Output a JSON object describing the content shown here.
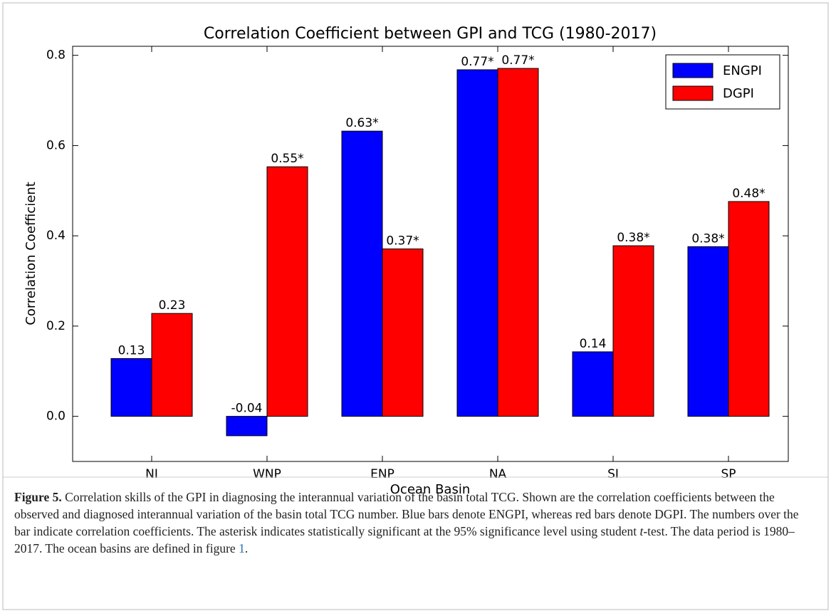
{
  "chart_data": {
    "type": "bar",
    "title": "Correlation Coefficient between GPI and TCG (1980-2017)",
    "x_label": "Ocean Basin",
    "y_label": "Correlation Coefficient",
    "categories": [
      "NI",
      "WNP",
      "ENP",
      "NA",
      "SI",
      "SP"
    ],
    "series": [
      {
        "name": "ENGPI",
        "color": "#0000ff",
        "values": [
          0.128,
          -0.043,
          0.632,
          0.768,
          0.143,
          0.376
        ],
        "value_labels": [
          "0.13",
          "-0.04",
          "0.63*",
          "0.77*",
          "0.14",
          "0.38*"
        ]
      },
      {
        "name": "DGPI",
        "color": "#ff0000",
        "values": [
          0.228,
          0.553,
          0.371,
          0.771,
          0.378,
          0.476
        ],
        "value_labels": [
          "0.23",
          "0.55*",
          "0.37*",
          "0.77*",
          "0.38*",
          "0.48*"
        ]
      }
    ],
    "ylim": [
      -0.1,
      0.82
    ],
    "yticks": [
      {
        "value": 0,
        "label": "0.0"
      },
      0.2,
      0.4,
      0.6,
      0.8
    ],
    "legend": "upper right"
  },
  "caption": {
    "label": "Figure 5.",
    "text_1": "Correlation skills of the GPI in diagnosing the interannual variation of the basin total TCG. Shown are the correlation coefficients between the observed and diagnosed interannual variation of the basin total TCG number. Blue bars denote ENGPI, whereas red bars denote DGPI. The numbers over the bar indicate correlation coefficients. The asterisk indicates statistically significant at the 95% significance level using student ",
    "italic": "t",
    "text_2": "-test. The data period is 1980–2017. The ocean basins are defined in figure ",
    "link": "1",
    "text_3": "."
  }
}
